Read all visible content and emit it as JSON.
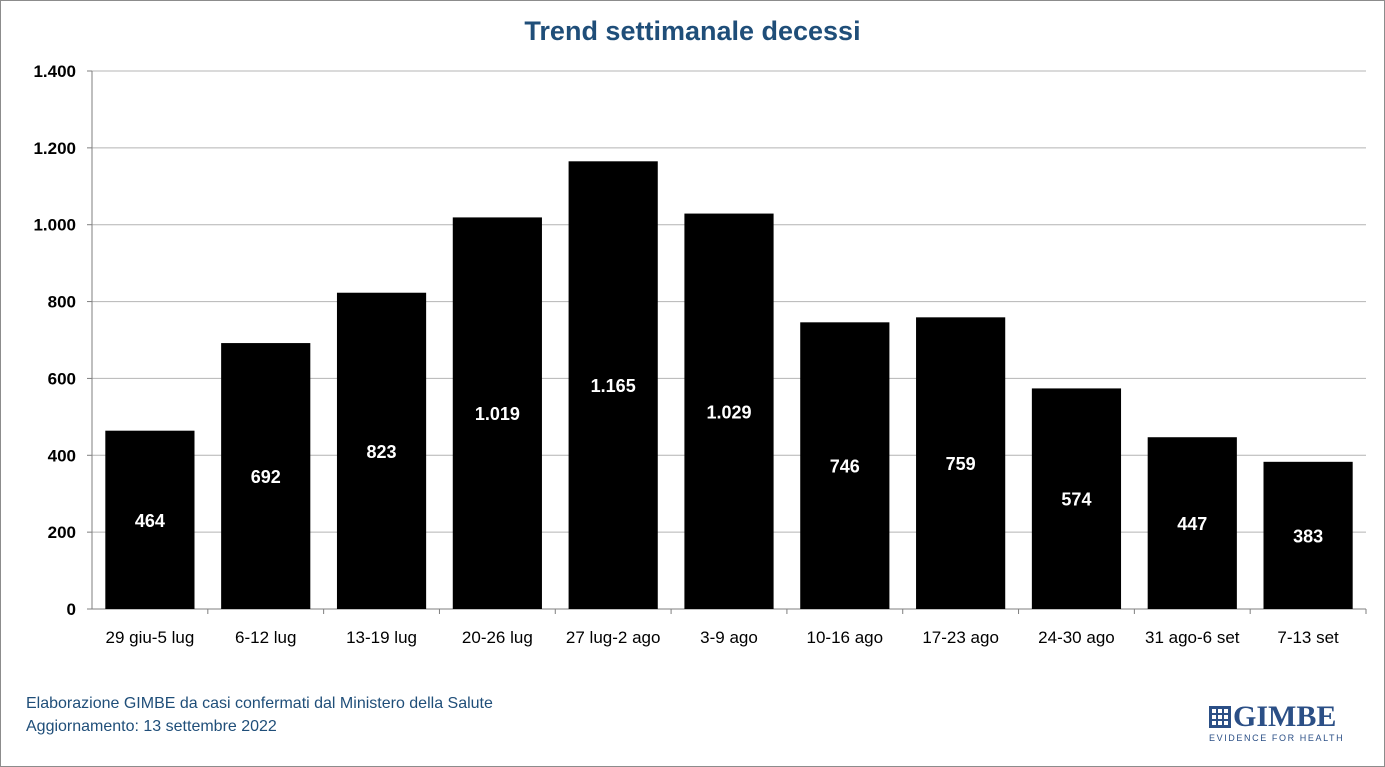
{
  "chart_data": {
    "type": "bar",
    "title": "Trend settimanale decessi",
    "xlabel": "",
    "ylabel": "",
    "categories": [
      "29 giu-5 lug",
      "6-12 lug",
      "13-19 lug",
      "20-26 lug",
      "27 lug-2 ago",
      "3-9 ago",
      "10-16 ago",
      "17-23 ago",
      "24-30 ago",
      "31 ago-6 set",
      "7-13 set"
    ],
    "values": [
      464,
      692,
      823,
      1019,
      1165,
      1029,
      746,
      759,
      574,
      447,
      383
    ],
    "value_labels": [
      "464",
      "692",
      "823",
      "1.019",
      "1.165",
      "1.029",
      "746",
      "759",
      "574",
      "447",
      "383"
    ],
    "ylim": [
      0,
      1400
    ],
    "yticks": [
      0,
      200,
      400,
      600,
      800,
      1000,
      1200,
      1400
    ],
    "ytick_labels": [
      "0",
      "200",
      "400",
      "600",
      "800",
      "1.000",
      "1.200",
      "1.400"
    ],
    "grid": true,
    "legend": "none",
    "bar_color": "#000000",
    "label_color": "#ffffff"
  },
  "footer": {
    "line1": "Elaborazione GIMBE da casi confermati dal Ministero della Salute",
    "line2": "Aggiornamento: 13 settembre 2022"
  },
  "logo": {
    "name": "GIMBE",
    "tagline": "EVIDENCE FOR HEALTH",
    "color": "#2b4f86"
  }
}
